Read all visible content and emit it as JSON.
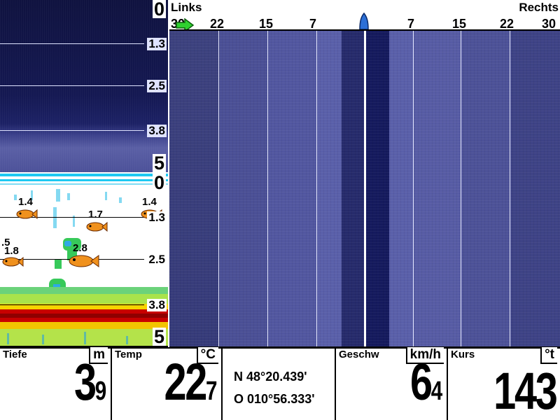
{
  "down_imaging": {
    "top_depth": "0",
    "bottom_depth": "5",
    "depth_lines": [
      "1.3",
      "2.5",
      "3.8"
    ]
  },
  "sonar_2d": {
    "top_depth": "0",
    "bottom_depth": "5",
    "depth_lines": [
      "1.3",
      "2.5",
      "3.8"
    ],
    "fish": [
      {
        "depth": "1.4"
      },
      {
        "depth": "1.7"
      },
      {
        "depth": "1.4"
      },
      {
        "depth": ".5"
      },
      {
        "depth": "1.8"
      },
      {
        "depth": "2.8"
      }
    ]
  },
  "side_imaging": {
    "left_label": "Links",
    "right_label": "Rechts",
    "scale_left": [
      "30",
      "22",
      "15",
      "7"
    ],
    "scale_right": [
      "7",
      "15",
      "22",
      "30"
    ],
    "colors": {
      "background": "#4a4f95",
      "water_column": "#151a5e",
      "gridline": "#e6e9ff"
    }
  },
  "data_bar": {
    "depth": {
      "title": "Tiefe",
      "unit": "m",
      "value_int": "3",
      "value_dec": "9"
    },
    "temp": {
      "title": "Temp",
      "unit": "°C",
      "value_int": "22",
      "value_dec": "7"
    },
    "position": {
      "lat": "N 48°20.439'",
      "lon": "O 010°56.333'"
    },
    "speed": {
      "title": "Geschw",
      "unit": "km/h",
      "value_int": "6",
      "value_dec": "4"
    },
    "heading": {
      "title": "Kurs",
      "unit": "°t",
      "value": "143"
    }
  }
}
